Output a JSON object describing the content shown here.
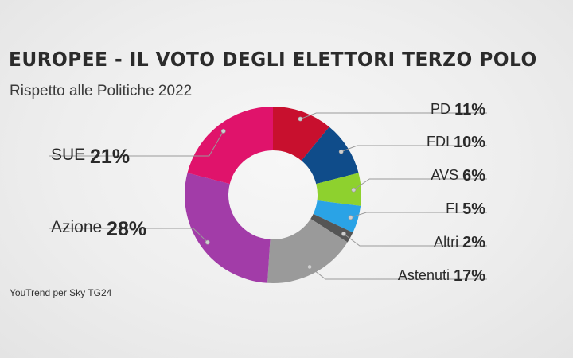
{
  "title": "EUROPEE - IL VOTO DEGLI ELETTORI TERZO POLO",
  "subtitle": "Rispetto alle Politiche 2022",
  "source": "YouTrend per Sky TG24",
  "chart_data": {
    "type": "pie",
    "donut": true,
    "categories": [
      "PD",
      "FDI",
      "AVS",
      "FI",
      "Altri",
      "Astenuti",
      "Azione",
      "SUE"
    ],
    "values": [
      11,
      10,
      6,
      5,
      2,
      17,
      28,
      21
    ],
    "labels": [
      "11%",
      "10%",
      "6%",
      "5%",
      "2%",
      "17%",
      "28%",
      "21%"
    ],
    "colors": [
      "#c8102e",
      "#0f4c8a",
      "#8ed12e",
      "#2aa3e6",
      "#555555",
      "#9a9a9a",
      "#a23ca8",
      "#e0136b"
    ],
    "start_angle_deg": 0,
    "direction": "clockwise"
  }
}
